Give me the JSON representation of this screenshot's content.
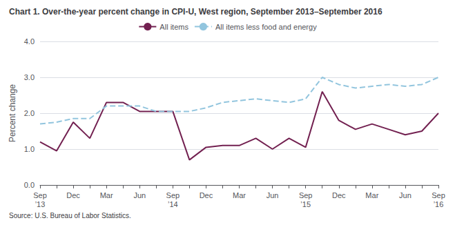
{
  "chart_data": {
    "type": "line",
    "title": "Chart 1. Over-the-year percent change in CPI-U, West region, September 2013–September 2016",
    "ylabel": "Percent change",
    "source": "Source: U.S. Bureau of Labor Statistics.",
    "categories": [
      "Sep\n’13",
      null,
      "Dec",
      null,
      "Mar",
      null,
      "Jun",
      null,
      "Sep\n’14",
      null,
      "Dec",
      null,
      "Mar",
      null,
      "Jun",
      null,
      "Sep\n’15",
      null,
      "Dec",
      null,
      "Mar",
      null,
      "Jun",
      null,
      "Sep\n’16"
    ],
    "series": [
      {
        "name": "All items",
        "color": "#722050",
        "line_style": "solid",
        "values": [
          1.2,
          0.95,
          1.75,
          1.3,
          2.3,
          2.3,
          2.05,
          2.05,
          2.05,
          0.7,
          1.05,
          1.1,
          1.1,
          1.3,
          1.0,
          1.3,
          1.05,
          2.6,
          1.8,
          1.55,
          1.7,
          1.55,
          1.4,
          1.5,
          2.0
        ]
      },
      {
        "name": "All items less food and energy",
        "color": "#92c5de",
        "line_style": "dashed",
        "values": [
          1.7,
          1.75,
          1.85,
          1.85,
          2.2,
          2.2,
          2.2,
          2.05,
          2.05,
          2.05,
          2.15,
          2.3,
          2.35,
          2.4,
          2.35,
          2.3,
          2.4,
          3.0,
          2.8,
          2.7,
          2.75,
          2.8,
          2.75,
          2.8,
          3.0
        ]
      }
    ],
    "ylim": [
      0.0,
      4.0
    ],
    "yticks": [
      {
        "value": 0,
        "label": "0.0"
      },
      {
        "value": 1,
        "label": "1.0"
      },
      {
        "value": 2,
        "label": "2.0"
      },
      {
        "value": 3,
        "label": "3.0"
      },
      {
        "value": 4,
        "label": "4.0"
      }
    ],
    "grid": true,
    "legend": "top"
  }
}
